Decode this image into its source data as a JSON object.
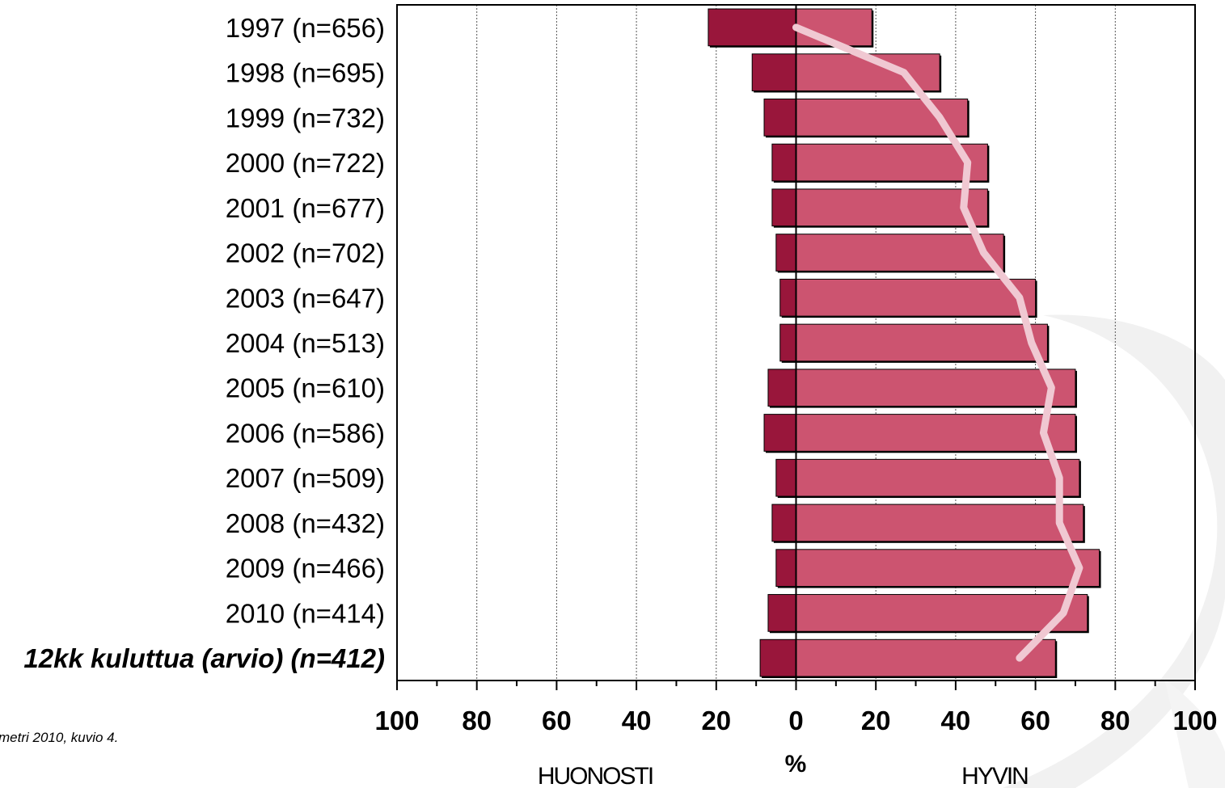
{
  "source_note": "metri 2010, kuvio 4.",
  "chart_data": {
    "type": "bar",
    "orientation": "horizontal-diverging",
    "categories": [
      "1997 (n=656)",
      "1998 (n=695)",
      "1999 (n=732)",
      "2000 (n=722)",
      "2001 (n=677)",
      "2002 (n=702)",
      "2003 (n=647)",
      "2004 (n=513)",
      "2005 (n=610)",
      "2006 (n=586)",
      "2007 (n=509)",
      "2008 (n=432)",
      "2009 (n=466)",
      "2010 (n=414)",
      "12kk kuluttua (arvio) (n=412)"
    ],
    "highlight_last_category": true,
    "series": [
      {
        "name": "HUONOSTI",
        "color": "#99163b",
        "values": [
          22,
          11,
          8,
          6,
          6,
          5,
          4,
          4,
          7,
          8,
          5,
          6,
          5,
          7,
          9
        ]
      },
      {
        "name": "HYVIN",
        "color": "#cc5470",
        "values": [
          19,
          36,
          43,
          48,
          48,
          52,
          60,
          63,
          70,
          70,
          71,
          72,
          76,
          73,
          65
        ]
      }
    ],
    "line": {
      "color": "#f0c8d2",
      "values": [
        0,
        27,
        36,
        43,
        42,
        47,
        56,
        59,
        64,
        62,
        66,
        66,
        71,
        67,
        56
      ]
    },
    "xlim": [
      -100,
      100
    ],
    "xticks": [
      -100,
      -80,
      -60,
      -40,
      -20,
      0,
      20,
      40,
      60,
      80,
      100
    ],
    "xtick_labels": [
      "100",
      "80",
      "60",
      "40",
      "20",
      "0",
      "20",
      "40",
      "60",
      "80",
      "100"
    ],
    "xlabel": "%",
    "left_label": "HUONOSTI",
    "right_label": "HYVIN",
    "grid": true
  }
}
